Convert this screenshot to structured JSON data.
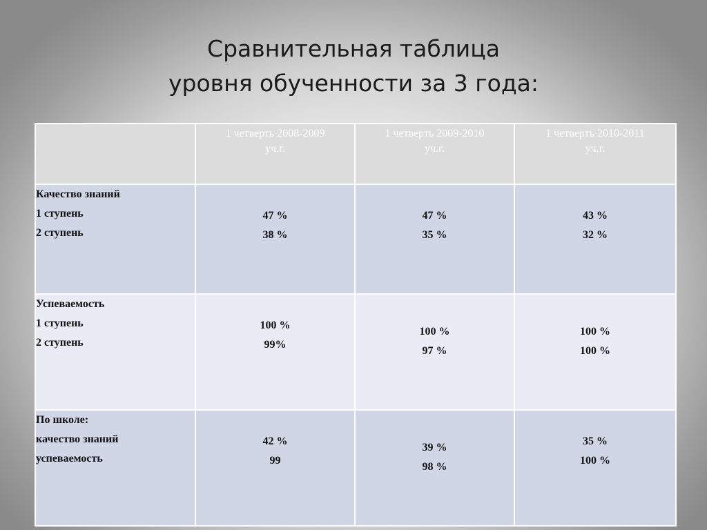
{
  "title": {
    "line1": "Сравнительная таблица",
    "line2": "уровня обученности за 3 года:"
  },
  "table": {
    "headers": [
      {
        "line1": "1 четверть 2008-2009",
        "line2": "уч.г."
      },
      {
        "line1": "1 четверть 2009-2010",
        "line2": "уч.г."
      },
      {
        "line1": "1 четверть 2010-2011",
        "line2": "уч.г."
      }
    ],
    "rows": [
      {
        "labels": [
          "Качество знаний",
          "1 ступень",
          "2 ступень"
        ],
        "values": [
          [
            "47 %",
            "38 %"
          ],
          [
            "47 %",
            "35 %"
          ],
          [
            "43 %",
            "32 %"
          ]
        ]
      },
      {
        "labels": [
          "Успеваемость",
          "1 ступень",
          "2 ступень"
        ],
        "values": [
          [
            "100 %",
            "99%"
          ],
          [
            "100 %",
            "97 %"
          ],
          [
            "100 %",
            "100 %"
          ]
        ]
      },
      {
        "labels": [
          "По школе:",
          "качество знаний",
          "успеваемость"
        ],
        "values": [
          [
            "42 %",
            "99"
          ],
          [
            "39 %",
            "98 %"
          ],
          [
            "35 %",
            "100 %"
          ]
        ]
      }
    ]
  },
  "colors": {
    "header_bg": "#dcdcdc",
    "row_dark": "#d0d6e6",
    "row_light": "#e9ecf4",
    "header_text": "#ffffff"
  }
}
